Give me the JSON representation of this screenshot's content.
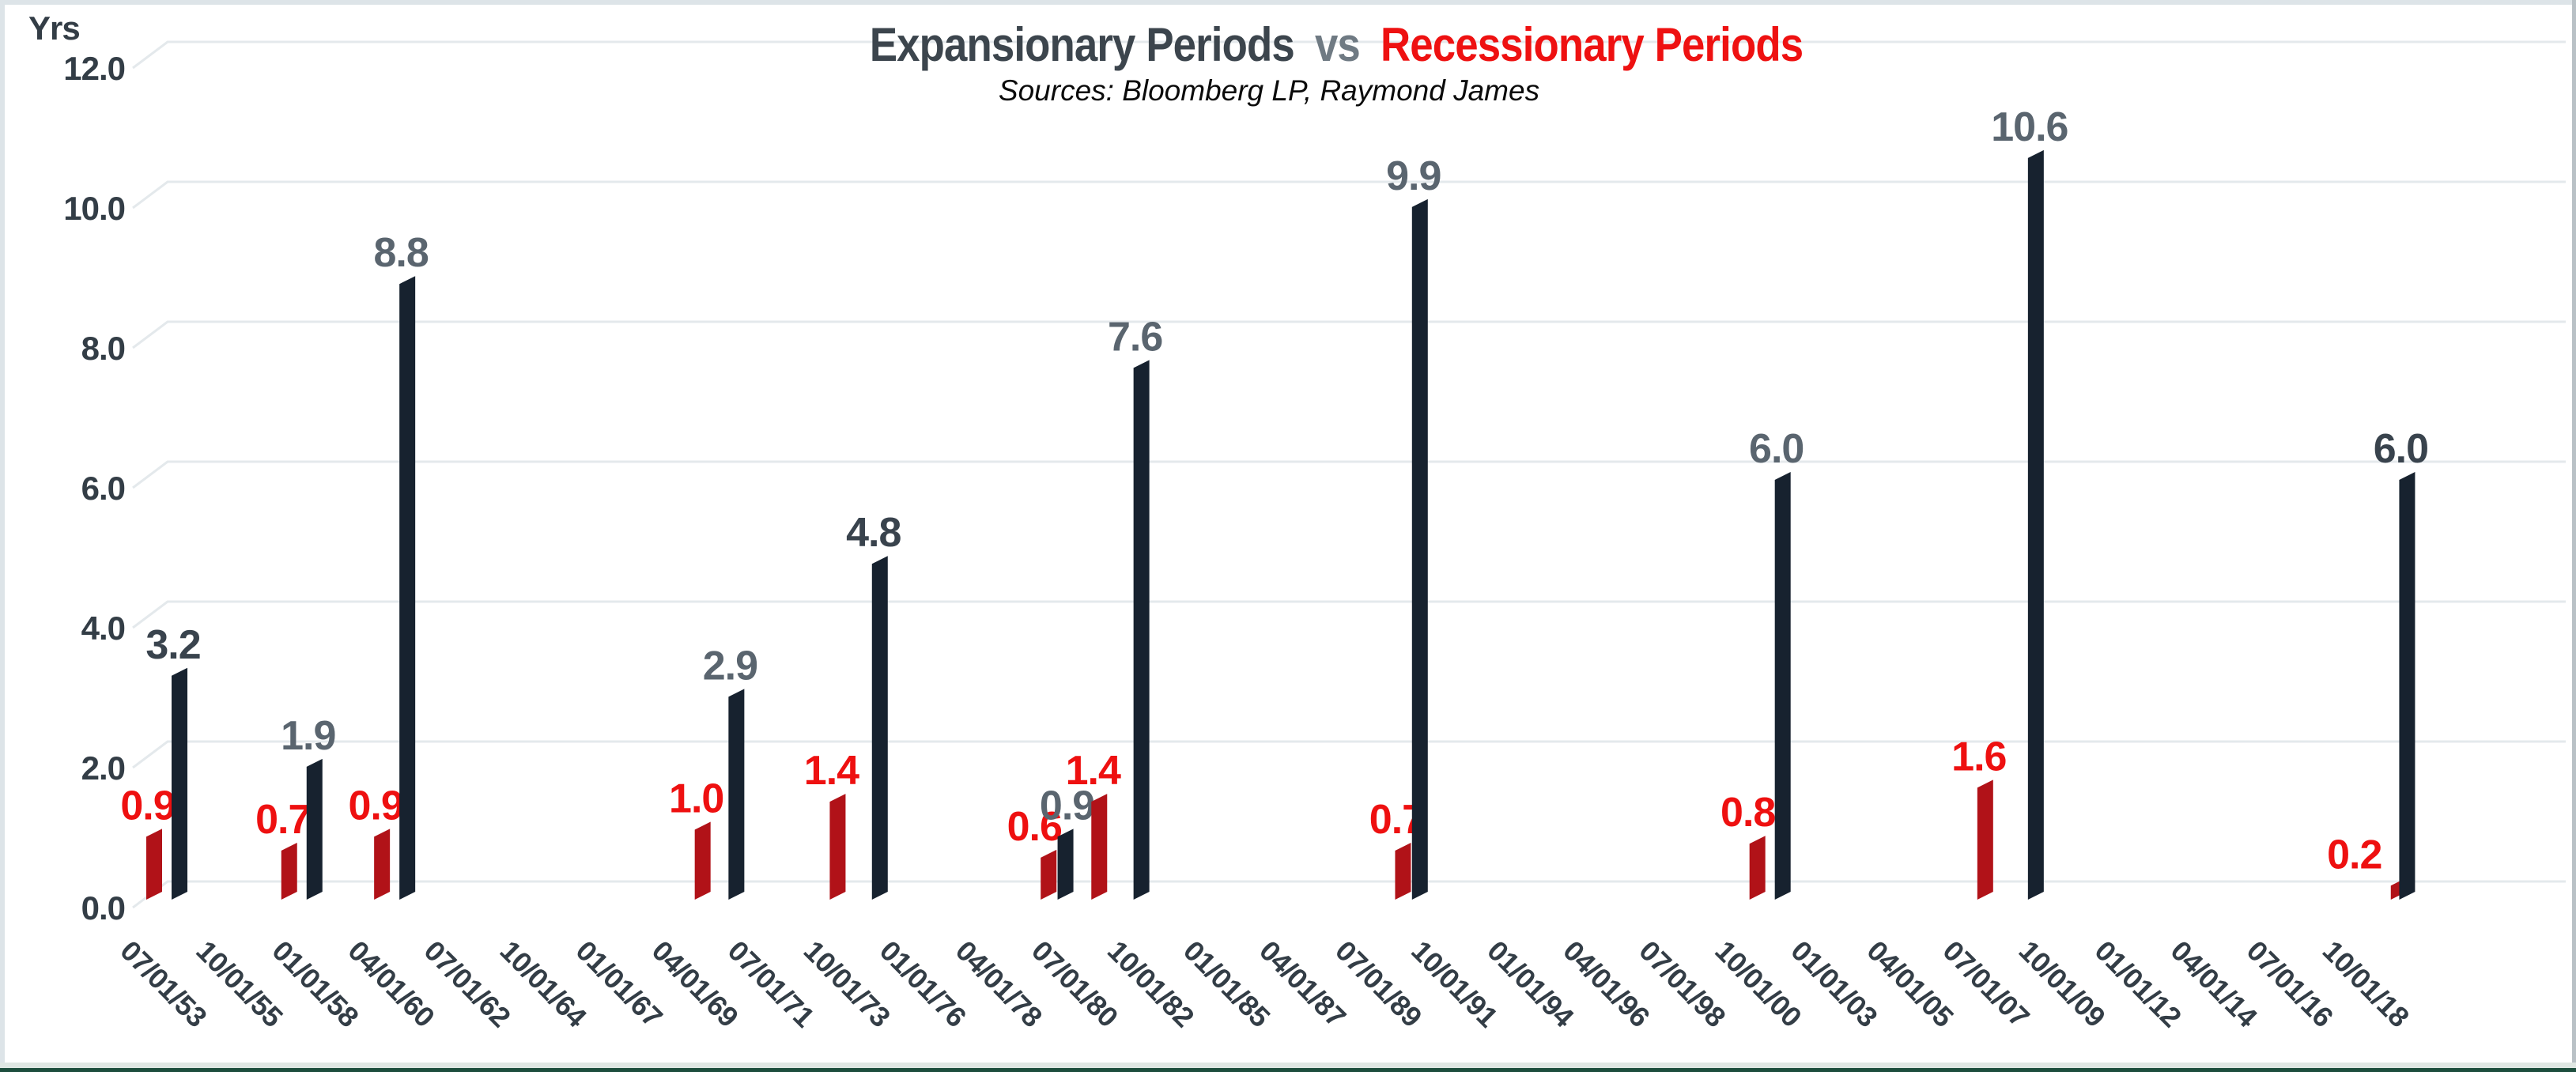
{
  "title": {
    "part1": "Expansionary Periods",
    "vs": "vs",
    "part2": "Recessionary Periods"
  },
  "subtitle": {
    "text": "Sources: Bloomberg LP, Raymond James"
  },
  "y_axis": {
    "title": "Yrs"
  },
  "colors": {
    "expansion": "#17222f",
    "recession": "#b11218",
    "recession_label": "#ee1010",
    "expansion_label": "#5a656f",
    "expansion_label_dark": "#39434d",
    "axis_text": "#333d46",
    "gridline": "#e4e9ec",
    "title_dark": "#3c454d",
    "title_vs": "#6f7a83",
    "title_red": "#ee1111",
    "subtitle": "#0b0b0b",
    "frame_light": "#dde4e8",
    "frame_right": "#b9c1c6",
    "bottom_light": "#dfe7e3",
    "bottom_dark": "#1d4e3d"
  },
  "chart_data": {
    "type": "bar",
    "title": "Expansionary Periods vs Recessionary Periods",
    "subtitle": "Sources: Bloomberg LP, Raymond James",
    "ylabel": "Yrs",
    "ylim": [
      0,
      12
    ],
    "ytick_step": 2,
    "y_tick_labels": [
      "12.0",
      "10.0",
      "8.0",
      "6.0",
      "4.0",
      "2.0",
      "0.0"
    ],
    "grid": true,
    "legend": "none",
    "style": "3d-skewed-columns, x labels rotated 45deg down",
    "x_axis_unit": "quarters since first category, 9 quarters per labeled tick",
    "x_tick_labels": [
      "07/01/53",
      "10/01/55",
      "01/01/58",
      "04/01/60",
      "07/01/62",
      "10/01/64",
      "01/01/67",
      "04/01/69",
      "07/01/71",
      "10/01/73",
      "01/01/76",
      "04/01/78",
      "07/01/80",
      "10/01/82",
      "01/01/85",
      "04/01/87",
      "07/01/89",
      "10/01/91",
      "01/01/94",
      "04/01/96",
      "07/01/98",
      "10/01/00",
      "01/01/03",
      "04/01/05",
      "07/01/07",
      "10/01/09",
      "01/01/12",
      "04/01/14",
      "07/01/16",
      "10/01/18"
    ],
    "series": [
      {
        "name": "Recessionary Periods",
        "color_key": "recession"
      },
      {
        "name": "Expansionary Periods",
        "color_key": "expansion"
      }
    ],
    "bars": [
      {
        "series": "recession",
        "q": 0,
        "value": 0.9,
        "label": "0.9"
      },
      {
        "series": "expansion",
        "q": 3,
        "value": 3.2,
        "label": "3.2",
        "label_shade": "dark"
      },
      {
        "series": "recession",
        "q": 16,
        "value": 0.7,
        "label": "0.7"
      },
      {
        "series": "expansion",
        "q": 19,
        "value": 1.9,
        "label": "1.9"
      },
      {
        "series": "recession",
        "q": 27,
        "value": 0.9,
        "label": "0.9"
      },
      {
        "series": "expansion",
        "q": 30,
        "value": 8.8,
        "label": "8.8"
      },
      {
        "series": "recession",
        "q": 65,
        "value": 1.0,
        "label": "1.0"
      },
      {
        "series": "expansion",
        "q": 69,
        "value": 2.9,
        "label": "2.9"
      },
      {
        "series": "recession",
        "q": 81,
        "value": 1.4,
        "label": "1.4"
      },
      {
        "series": "expansion",
        "q": 86,
        "value": 4.8,
        "label": "4.8",
        "label_shade": "dark"
      },
      {
        "series": "recession",
        "q": 106,
        "value": 0.6,
        "label": "0.6",
        "label_dx": -10
      },
      {
        "series": "expansion",
        "q": 108,
        "value": 0.9,
        "label": "0.9",
        "label_dx": 10
      },
      {
        "series": "recession",
        "q": 112,
        "value": 1.4,
        "label": "1.4"
      },
      {
        "series": "expansion",
        "q": 117,
        "value": 7.6,
        "label": "7.6"
      },
      {
        "series": "recession",
        "q": 148,
        "value": 0.7,
        "label": "0.7"
      },
      {
        "series": "expansion",
        "q": 150,
        "value": 9.9,
        "label": "9.9"
      },
      {
        "series": "recession",
        "q": 190,
        "value": 0.8,
        "label": "0.8",
        "label_dx": -4
      },
      {
        "series": "expansion",
        "q": 193,
        "value": 6.0,
        "label": "6.0"
      },
      {
        "series": "recession",
        "q": 217,
        "value": 1.6,
        "label": "1.6"
      },
      {
        "series": "expansion",
        "q": 223,
        "value": 10.6,
        "label": "10.6"
      },
      {
        "series": "recession",
        "q": 266,
        "value": 0.2,
        "label": "0.2",
        "label_dx": -48
      },
      {
        "series": "expansion",
        "q": 267,
        "value": 6.0,
        "label": "6.0",
        "label_shade": "dark"
      }
    ]
  }
}
